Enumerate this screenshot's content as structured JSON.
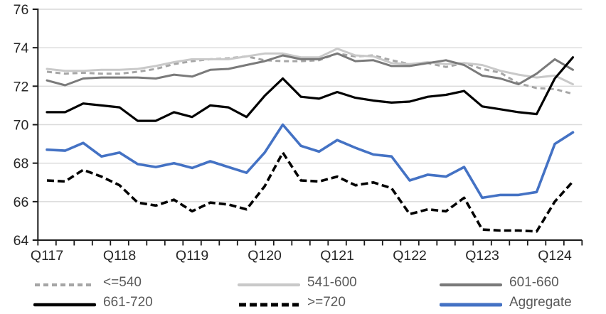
{
  "page": {
    "background": "#ffffff",
    "axis_color": "#1a1a1a",
    "gridline_color": "#d9d9d9",
    "axis_label_color": "#262626",
    "legend_text_color": "#595959"
  },
  "chart_data": {
    "type": "line",
    "title": "",
    "xlabel": "",
    "ylabel": "",
    "grid": "horizontal",
    "legend_position": "bottom",
    "n_points": 30,
    "x_start_quarter": "Q1 2017",
    "x_end_quarter": "Q2 2024",
    "x_tick_labels": [
      "Q117",
      "Q118",
      "Q119",
      "Q120",
      "Q121",
      "Q122",
      "Q123",
      "Q124"
    ],
    "x_labeled_point_indices": [
      0,
      4,
      8,
      12,
      16,
      20,
      24,
      28
    ],
    "ylim": [
      64,
      76
    ],
    "yticks": [
      64,
      66,
      68,
      70,
      72,
      74,
      76
    ],
    "series": [
      {
        "name": "<=540",
        "color": "#a6a6a6",
        "dash": "7 5",
        "width": 3,
        "values": [
          72.75,
          72.65,
          72.7,
          72.65,
          72.65,
          72.75,
          72.9,
          73.15,
          73.3,
          73.4,
          73.45,
          73.55,
          73.35,
          73.3,
          73.3,
          73.35,
          73.7,
          73.55,
          73.6,
          73.35,
          73.15,
          73.2,
          73.0,
          73.2,
          72.9,
          72.7,
          72.15,
          71.9,
          71.85,
          71.6
        ]
      },
      {
        "name": "541-600",
        "color": "#c9c9c9",
        "dash": "",
        "width": 3,
        "values": [
          72.9,
          72.8,
          72.8,
          72.85,
          72.85,
          72.9,
          73.05,
          73.25,
          73.4,
          73.4,
          73.4,
          73.55,
          73.7,
          73.7,
          73.5,
          73.5,
          73.95,
          73.6,
          73.55,
          73.2,
          73.15,
          73.25,
          73.15,
          73.2,
          73.1,
          72.8,
          72.6,
          72.45,
          72.55,
          72.1
        ]
      },
      {
        "name": "601-660",
        "color": "#7a7a7a",
        "dash": "",
        "width": 3,
        "values": [
          72.3,
          72.05,
          72.4,
          72.45,
          72.45,
          72.45,
          72.4,
          72.6,
          72.5,
          72.85,
          72.9,
          73.1,
          73.3,
          73.6,
          73.4,
          73.4,
          73.7,
          73.3,
          73.35,
          73.05,
          73.05,
          73.2,
          73.35,
          73.1,
          72.55,
          72.4,
          72.1,
          72.65,
          73.4,
          72.85
        ]
      },
      {
        "name": "661-720",
        "color": "#000000",
        "dash": "",
        "width": 3.2,
        "values": [
          70.65,
          70.65,
          71.1,
          71.0,
          70.9,
          70.2,
          70.2,
          70.65,
          70.4,
          71.0,
          70.9,
          70.4,
          71.5,
          72.4,
          71.45,
          71.35,
          71.7,
          71.4,
          71.25,
          71.15,
          71.2,
          71.45,
          71.55,
          71.75,
          70.95,
          70.8,
          70.65,
          70.55,
          72.4,
          73.5
        ]
      },
      {
        "name": ">=720",
        "color": "#000000",
        "dash": "10 5",
        "width": 3.6,
        "values": [
          67.1,
          67.05,
          67.65,
          67.3,
          66.85,
          65.95,
          65.8,
          66.1,
          65.5,
          65.95,
          65.85,
          65.6,
          66.8,
          68.55,
          67.1,
          67.05,
          67.3,
          66.85,
          67.0,
          66.7,
          65.35,
          65.6,
          65.5,
          66.2,
          64.55,
          64.5,
          64.5,
          64.45,
          66.0,
          67.05
        ]
      },
      {
        "name": "Aggregate",
        "color": "#4472c4",
        "dash": "",
        "width": 3.6,
        "values": [
          68.7,
          68.65,
          69.05,
          68.35,
          68.55,
          67.95,
          67.8,
          68.0,
          67.75,
          68.1,
          67.8,
          67.5,
          68.55,
          70.0,
          68.9,
          68.6,
          69.2,
          68.8,
          68.45,
          68.35,
          67.1,
          67.4,
          67.3,
          67.8,
          66.2,
          66.35,
          66.35,
          66.5,
          69.0,
          69.6
        ]
      }
    ]
  }
}
